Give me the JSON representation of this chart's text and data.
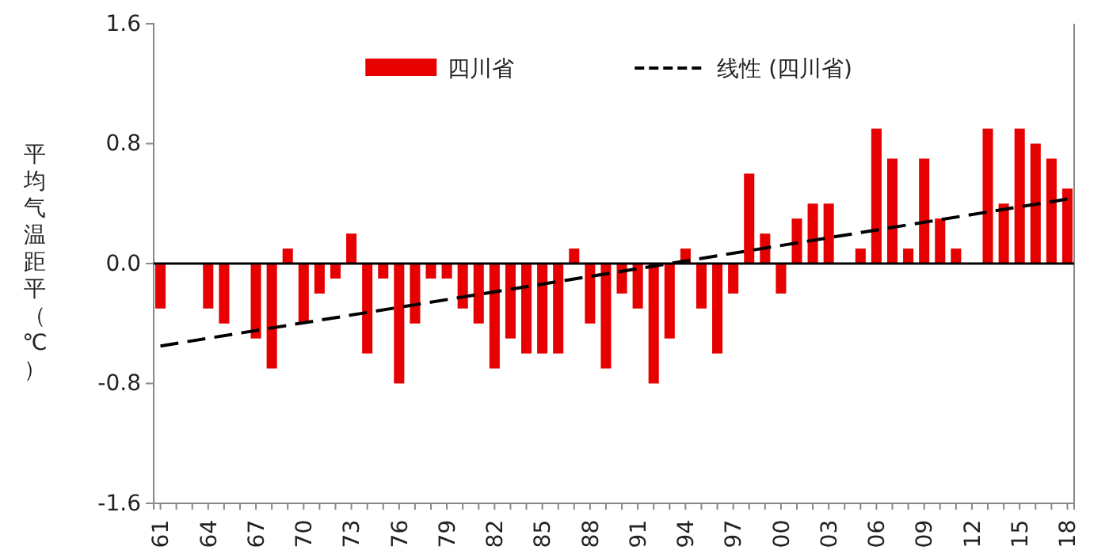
{
  "chart_data": {
    "type": "bar",
    "ylabel": "平均气温距平（℃）",
    "categories": [
      "61",
      null,
      null,
      "64",
      null,
      null,
      "67",
      null,
      null,
      "70",
      null,
      null,
      "73",
      null,
      null,
      "76",
      null,
      null,
      "79",
      null,
      null,
      "82",
      null,
      null,
      "85",
      null,
      null,
      "88",
      null,
      null,
      "91",
      null,
      null,
      "94",
      null,
      null,
      "97",
      null,
      null,
      "00",
      null,
      null,
      "03",
      null,
      null,
      "06",
      null,
      null,
      "09",
      null,
      null,
      "12",
      null,
      null,
      "15",
      null,
      null,
      "18"
    ],
    "series": [
      {
        "name": "四川省",
        "color": "#e60000",
        "values": [
          -0.3,
          0,
          0,
          -0.3,
          -0.4,
          0,
          -0.5,
          -0.7,
          0.1,
          -0.4,
          -0.2,
          -0.1,
          0.2,
          -0.6,
          -0.1,
          -0.8,
          -0.4,
          -0.1,
          -0.1,
          -0.3,
          -0.4,
          -0.7,
          -0.5,
          -0.6,
          -0.6,
          -0.6,
          0.1,
          -0.4,
          -0.7,
          -0.2,
          -0.3,
          -0.8,
          -0.5,
          0.1,
          -0.3,
          -0.6,
          -0.2,
          0.6,
          0.2,
          -0.2,
          0.3,
          0.4,
          0.4,
          0,
          0.1,
          0.9,
          0.7,
          0.1,
          0.7,
          0.3,
          0.1,
          0,
          0.9,
          0.4,
          0.9,
          0.8,
          0.7,
          0.5
        ]
      },
      {
        "name": "线性 (四川省)",
        "type": "line",
        "color": "#000000",
        "line_style": "dashed",
        "x": [
          "61",
          "18"
        ],
        "values": [
          -0.55,
          0.43
        ]
      }
    ],
    "ylim": [
      -1.6,
      1.6
    ],
    "yticks": [
      -1.6,
      -0.8,
      {
        "value": 0,
        "label": "0.0"
      },
      0.8,
      1.6
    ],
    "legend": "top"
  }
}
